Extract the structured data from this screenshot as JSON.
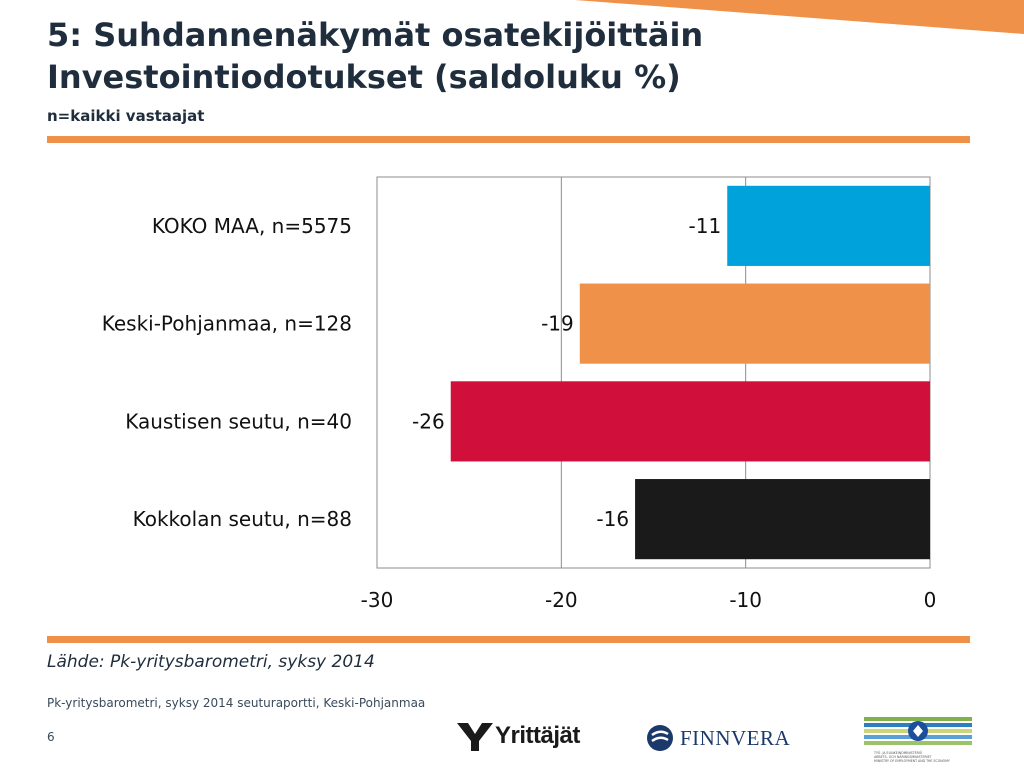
{
  "header": {
    "title_line1": "5: Suhdannenäkymät osatekijöittäin",
    "title_line2": "Investointiodotukset (saldoluku %)",
    "subtitle": "n=kaikki vastaajat"
  },
  "chart_data": {
    "type": "bar",
    "orientation": "horizontal",
    "categories": [
      "KOKO MAA, n=5575",
      "Keski-Pohjanmaa, n=128",
      "Kaustisen seutu, n=40",
      "Kokkolan seutu, n=88"
    ],
    "values": [
      -11,
      -19,
      -26,
      -16
    ],
    "value_labels": [
      "-11",
      "-19",
      "-26",
      "-16"
    ],
    "colors": [
      "#00a2db",
      "#f0914a",
      "#d0103a",
      "#1a1a1a"
    ],
    "xlim": [
      -30,
      0
    ],
    "xticks": [
      -30,
      -20,
      -10,
      0
    ],
    "xtick_labels": [
      "-30",
      "-20",
      "-10",
      "0"
    ],
    "grid": true
  },
  "source": "Lähde: Pk-yritysbarometri, syksy 2014",
  "footer": {
    "report": "Pk-yritysbarometri, syksy 2014 seuturaportti, Keski-Pohjanmaa",
    "page": "6"
  },
  "logos": {
    "yrittajat": "Yrittäjät",
    "finnvera": "FINNVERA",
    "ministry_lines": [
      "TYÖ- JA ELINKEINOMINISTERIÖ",
      "ARBETS- OCH NÄRINGSMINISTERIET",
      "MINISTRY OF EMPLOYMENT AND THE ECONOMY"
    ]
  },
  "colors": {
    "accent": "#f0914a",
    "text": "#1f2d3d"
  }
}
